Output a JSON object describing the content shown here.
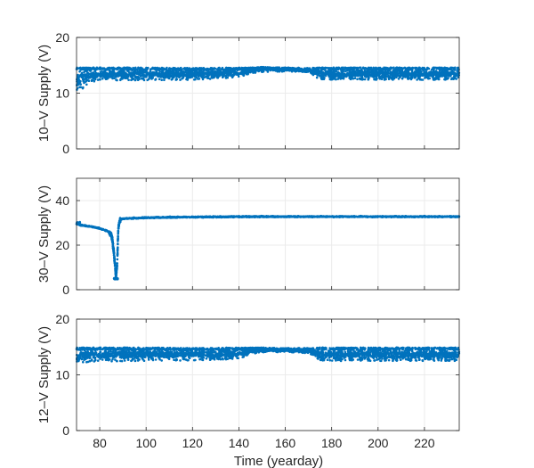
{
  "chart_data": [
    {
      "type": "scatter",
      "ylabel": "10–V Supply (V)",
      "xlim": [
        70,
        235
      ],
      "ylim": [
        0,
        20
      ],
      "yticks": [
        0,
        10,
        20
      ],
      "xticks": [
        80,
        100,
        120,
        140,
        160,
        180,
        200,
        220
      ],
      "grid": true,
      "color": "#0072BD",
      "band": {
        "x": [
          70,
          72,
          75,
          80,
          100,
          120,
          140,
          145,
          150,
          160,
          170,
          175,
          180,
          190,
          200,
          210,
          220,
          235
        ],
        "upper": [
          14.6,
          14.6,
          14.6,
          14.6,
          14.6,
          14.5,
          14.6,
          14.6,
          14.7,
          14.6,
          14.5,
          14.6,
          14.6,
          14.6,
          14.6,
          14.6,
          14.6,
          14.6
        ],
        "lower": [
          9.3,
          10.5,
          11.8,
          12.3,
          12.3,
          12.4,
          12.8,
          13.6,
          13.8,
          13.9,
          13.8,
          12.5,
          12.4,
          12.4,
          12.4,
          12.4,
          12.4,
          12.4
        ],
        "center": [
          12.5,
          12.7,
          13.0,
          13.3,
          13.3,
          13.4,
          13.6,
          14.1,
          14.3,
          14.2,
          14.1,
          13.5,
          13.4,
          13.4,
          13.4,
          13.4,
          13.4,
          13.4
        ]
      }
    },
    {
      "type": "scatter",
      "ylabel": "30–V Supply (V)",
      "xlim": [
        70,
        235
      ],
      "ylim": [
        0,
        50
      ],
      "yticks": [
        0,
        20,
        40
      ],
      "xticks": [
        80,
        100,
        120,
        140,
        160,
        180,
        200,
        220
      ],
      "grid": true,
      "color": "#0072BD",
      "x": [
        70,
        72,
        75,
        78,
        80,
        82,
        84,
        85,
        85.5,
        86,
        86.5,
        87,
        87.5,
        88,
        88.5,
        89,
        90,
        92,
        95,
        100,
        110,
        120,
        130,
        140,
        160,
        180,
        200,
        220,
        235
      ],
      "y": [
        29.5,
        29.0,
        28.5,
        28.0,
        27.5,
        26.8,
        26.0,
        24.5,
        22.0,
        17.5,
        12.0,
        6.0,
        11.0,
        27.5,
        30.5,
        31.5,
        31.8,
        32.0,
        32.1,
        32.3,
        32.5,
        32.6,
        32.7,
        32.8,
        32.8,
        32.8,
        32.8,
        32.8,
        32.8
      ]
    },
    {
      "type": "scatter",
      "ylabel": "12–V Supply (V)",
      "xlabel": "Time (yearday)",
      "xlim": [
        70,
        235
      ],
      "ylim": [
        0,
        20
      ],
      "yticks": [
        0,
        10,
        20
      ],
      "xticks": [
        80,
        100,
        120,
        140,
        160,
        180,
        200,
        220
      ],
      "grid": true,
      "color": "#0072BD",
      "band": {
        "x": [
          70,
          72,
          75,
          80,
          100,
          120,
          140,
          145,
          150,
          160,
          170,
          175,
          180,
          190,
          200,
          210,
          220,
          235
        ],
        "upper": [
          14.9,
          14.9,
          14.9,
          14.9,
          14.9,
          14.8,
          14.9,
          14.9,
          14.9,
          14.8,
          14.8,
          14.9,
          14.9,
          14.9,
          14.9,
          14.9,
          14.9,
          14.9
        ],
        "lower": [
          11.6,
          12.1,
          12.3,
          12.4,
          12.5,
          12.6,
          12.8,
          13.8,
          14.0,
          14.1,
          13.9,
          12.6,
          12.5,
          12.5,
          12.5,
          12.5,
          12.5,
          12.5
        ],
        "center": [
          13.2,
          13.4,
          13.5,
          13.6,
          13.6,
          13.7,
          13.8,
          14.3,
          14.4,
          14.4,
          14.3,
          13.7,
          13.6,
          13.6,
          13.6,
          13.6,
          13.6,
          13.6
        ]
      }
    }
  ]
}
